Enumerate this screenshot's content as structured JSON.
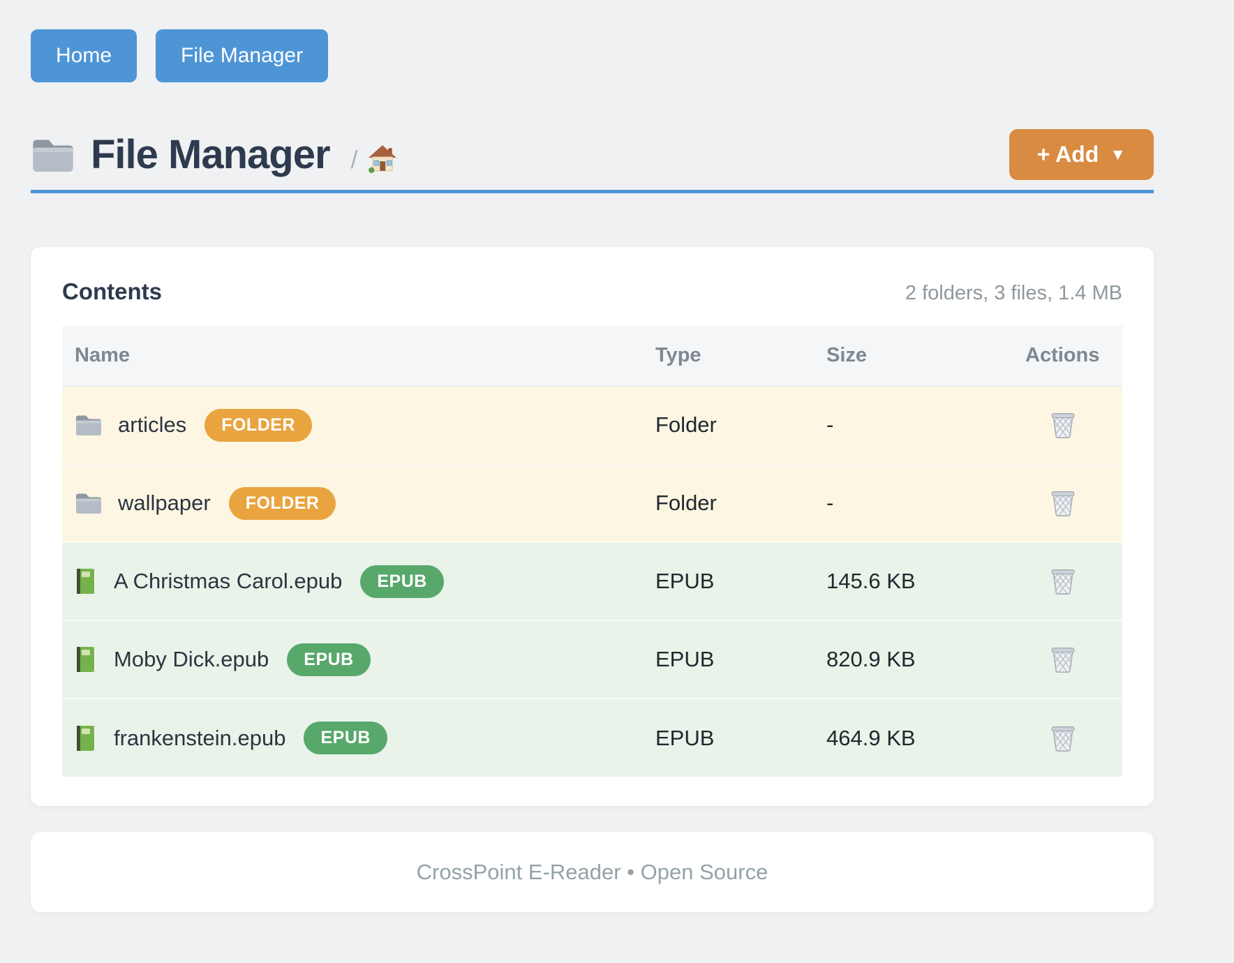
{
  "nav": {
    "buttons": [
      {
        "label": "Home"
      },
      {
        "label": "File Manager"
      }
    ]
  },
  "header": {
    "title_icon": "folder-icon",
    "title": "File Manager",
    "breadcrumb_separator": "/",
    "breadcrumb_home_icon": "home-icon",
    "add_button": {
      "label": "+ Add",
      "caret": "▼"
    }
  },
  "contents": {
    "title": "Contents",
    "summary": "2 folders, 3 files, 1.4 MB",
    "table": {
      "columns": [
        "Name",
        "Type",
        "Size",
        "Actions"
      ],
      "action_icon": "trash-icon",
      "rows": [
        {
          "icon": "folder-icon",
          "name": "articles",
          "badge": "FOLDER",
          "type": "Folder",
          "size": "-",
          "kind": "folder"
        },
        {
          "icon": "folder-icon",
          "name": "wallpaper",
          "badge": "FOLDER",
          "type": "Folder",
          "size": "-",
          "kind": "folder"
        },
        {
          "icon": "book-icon",
          "name": "A Christmas Carol.epub",
          "badge": "EPUB",
          "type": "EPUB",
          "size": "145.6 KB",
          "kind": "epub"
        },
        {
          "icon": "book-icon",
          "name": "Moby Dick.epub",
          "badge": "EPUB",
          "type": "EPUB",
          "size": "820.9 KB",
          "kind": "epub"
        },
        {
          "icon": "book-icon",
          "name": "frankenstein.epub",
          "badge": "EPUB",
          "type": "EPUB",
          "size": "464.9 KB",
          "kind": "epub"
        }
      ]
    }
  },
  "footer": {
    "text": "CrossPoint E-Reader • Open Source"
  },
  "colors": {
    "primary": "#4e95d6",
    "accent_orange": "#d98b42",
    "badge_folder": "#e9a43f",
    "badge_epub": "#58a86b",
    "row_folder_bg": "#fdf6e3",
    "row_epub_bg": "#e9f3e9",
    "page_bg": "#f0f1f2"
  }
}
